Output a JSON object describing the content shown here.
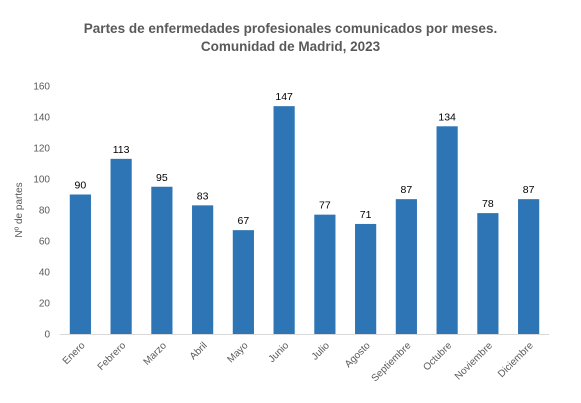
{
  "chart_data": {
    "type": "bar",
    "title_lines": [
      "Partes de enfermedades profesionales comunicados por meses.",
      "Comunidad de Madrid, 2023"
    ],
    "xlabel": "",
    "ylabel": "Nº de partes",
    "categories": [
      "Enero",
      "Febrero",
      "Marzo",
      "Abril",
      "Mayo",
      "Junio",
      "Julio",
      "Agosto",
      "Septiembre",
      "Octubre",
      "Noviembre",
      "Diciembre"
    ],
    "values": [
      90,
      113,
      95,
      83,
      67,
      147,
      77,
      71,
      87,
      134,
      78,
      87
    ],
    "ylim": [
      0,
      160
    ],
    "yticks": [
      0,
      20,
      40,
      60,
      80,
      100,
      120,
      140,
      160
    ],
    "data_labels": true,
    "grid": false,
    "legend": "none",
    "bar_color": "#2E75B6"
  }
}
